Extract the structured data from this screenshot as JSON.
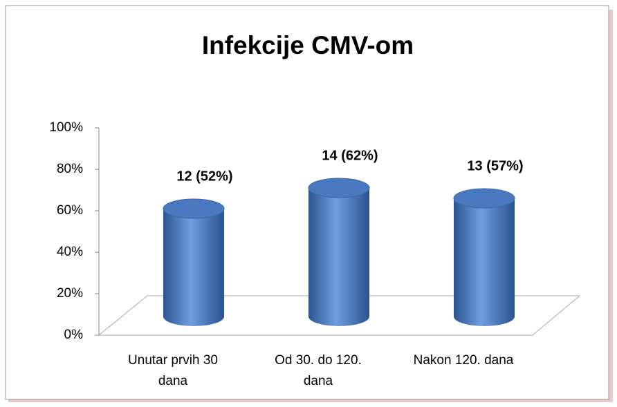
{
  "chart_data": {
    "type": "bar",
    "title": "Infekcije CMV-om",
    "categories": [
      "Unutar prvih 30 dana",
      "Od 30. do 120. dana",
      "Nakon 120. dana"
    ],
    "values": [
      52,
      62,
      57
    ],
    "value_labels": [
      "12 (52%)",
      "14 (62%)",
      "13 (57%)"
    ],
    "color": "#3f6fb5",
    "ylim": [
      0,
      100
    ],
    "yticks": [
      {
        "value": 0,
        "label": "0%"
      },
      {
        "value": 20,
        "label": "20%"
      },
      {
        "value": 40,
        "label": "40%"
      },
      {
        "value": 60,
        "label": "60%"
      },
      {
        "value": 80,
        "label": "80%"
      },
      {
        "value": 100,
        "label": "100%"
      }
    ],
    "grid": false
  }
}
